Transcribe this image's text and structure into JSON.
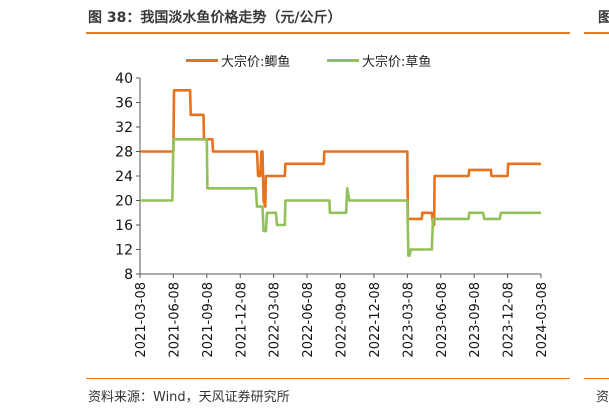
{
  "figure": {
    "title": "图 38：我国淡水鱼价格走势（元/公斤）",
    "source": "资料来源：Wind，天风证券研究所",
    "edge_title": "图",
    "edge_source": "资"
  },
  "chart_data": {
    "type": "line",
    "title": "",
    "xlabel": "",
    "ylabel": "",
    "ylim": [
      8,
      40
    ],
    "yticks": [
      8,
      12,
      16,
      20,
      24,
      28,
      32,
      36,
      40
    ],
    "x_tick_labels": [
      "2021-03-08",
      "2021-06-08",
      "2021-09-08",
      "2021-12-08",
      "2022-03-08",
      "2022-06-08",
      "2022-09-08",
      "2022-12-08",
      "2023-03-08",
      "2023-06-08",
      "2023-09-08",
      "2023-12-08",
      "2024-03-08"
    ],
    "x_unit": "months since 2021-03-08",
    "legend_position": "top-center",
    "grid": false,
    "series": [
      {
        "name": "大宗价:鲫鱼",
        "color": "#e8711c",
        "points": [
          [
            0,
            28
          ],
          [
            3,
            28
          ],
          [
            3.05,
            38
          ],
          [
            4.5,
            38
          ],
          [
            4.55,
            34
          ],
          [
            5.7,
            34
          ],
          [
            5.75,
            30
          ],
          [
            6.5,
            30
          ],
          [
            6.55,
            28
          ],
          [
            10.5,
            28
          ],
          [
            10.6,
            24
          ],
          [
            10.8,
            24
          ],
          [
            10.9,
            28
          ],
          [
            11,
            28
          ],
          [
            11.1,
            20
          ],
          [
            11.25,
            19
          ],
          [
            11.3,
            24
          ],
          [
            13,
            24
          ],
          [
            13.05,
            26
          ],
          [
            16.5,
            26
          ],
          [
            16.55,
            28
          ],
          [
            24,
            28
          ],
          [
            24.05,
            17
          ],
          [
            25.3,
            17
          ],
          [
            25.35,
            18
          ],
          [
            26.2,
            18
          ],
          [
            26.3,
            16
          ],
          [
            26.4,
            16
          ],
          [
            26.45,
            24
          ],
          [
            29.5,
            24
          ],
          [
            29.55,
            25
          ],
          [
            31.5,
            25
          ],
          [
            31.55,
            24
          ],
          [
            33,
            24
          ],
          [
            33.05,
            26
          ],
          [
            36,
            26
          ]
        ]
      },
      {
        "name": "大宗价:草鱼",
        "color": "#92c15a",
        "points": [
          [
            0,
            20
          ],
          [
            2.9,
            20
          ],
          [
            3,
            30
          ],
          [
            6,
            30
          ],
          [
            6.05,
            22
          ],
          [
            10.4,
            22
          ],
          [
            10.5,
            19
          ],
          [
            11,
            19
          ],
          [
            11.1,
            15
          ],
          [
            11.3,
            15
          ],
          [
            11.4,
            18
          ],
          [
            12.2,
            18
          ],
          [
            12.3,
            16
          ],
          [
            13,
            16
          ],
          [
            13.05,
            20
          ],
          [
            17,
            20
          ],
          [
            17.05,
            18
          ],
          [
            18.5,
            18
          ],
          [
            18.6,
            22
          ],
          [
            18.8,
            20
          ],
          [
            24,
            20
          ],
          [
            24.1,
            11
          ],
          [
            24.2,
            11
          ],
          [
            24.3,
            12
          ],
          [
            26.2,
            12
          ],
          [
            26.3,
            17
          ],
          [
            29.5,
            17
          ],
          [
            29.55,
            18
          ],
          [
            30.8,
            18
          ],
          [
            30.9,
            17
          ],
          [
            32.3,
            17
          ],
          [
            32.4,
            18
          ],
          [
            36,
            18
          ]
        ]
      }
    ]
  }
}
